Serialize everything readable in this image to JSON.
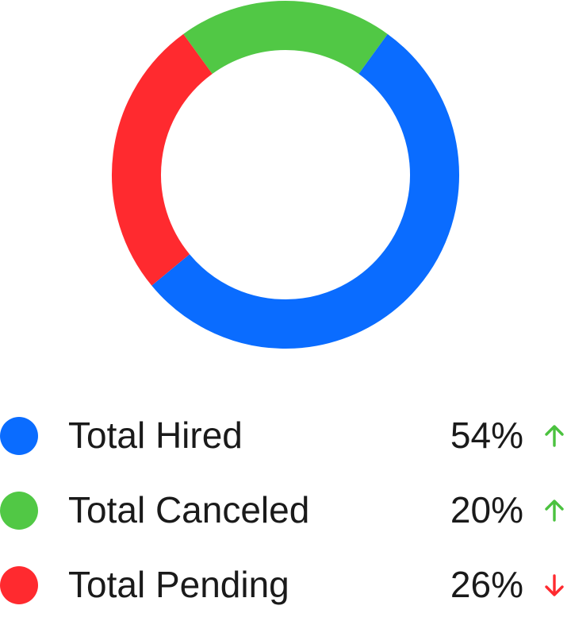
{
  "chart_data": {
    "type": "pie",
    "subtype": "donut",
    "series": [
      {
        "name": "Total Hired",
        "value": 54,
        "value_label": "54%",
        "color": "#0a6cff",
        "trend": "up"
      },
      {
        "name": "Total Canceled",
        "value": 20,
        "value_label": "20%",
        "color": "#51c845",
        "trend": "up"
      },
      {
        "name": "Total Pending",
        "value": 26,
        "value_label": "26%",
        "color": "#ff2a2f",
        "trend": "down"
      }
    ],
    "legend_placement": "bottom"
  },
  "colors": {
    "trend_up": "#4bc23f",
    "trend_down": "#ff2a2f",
    "text": "#1a1a1a"
  },
  "icons": {
    "trend_up": "arrow-up-icon",
    "trend_down": "arrow-down-icon"
  }
}
